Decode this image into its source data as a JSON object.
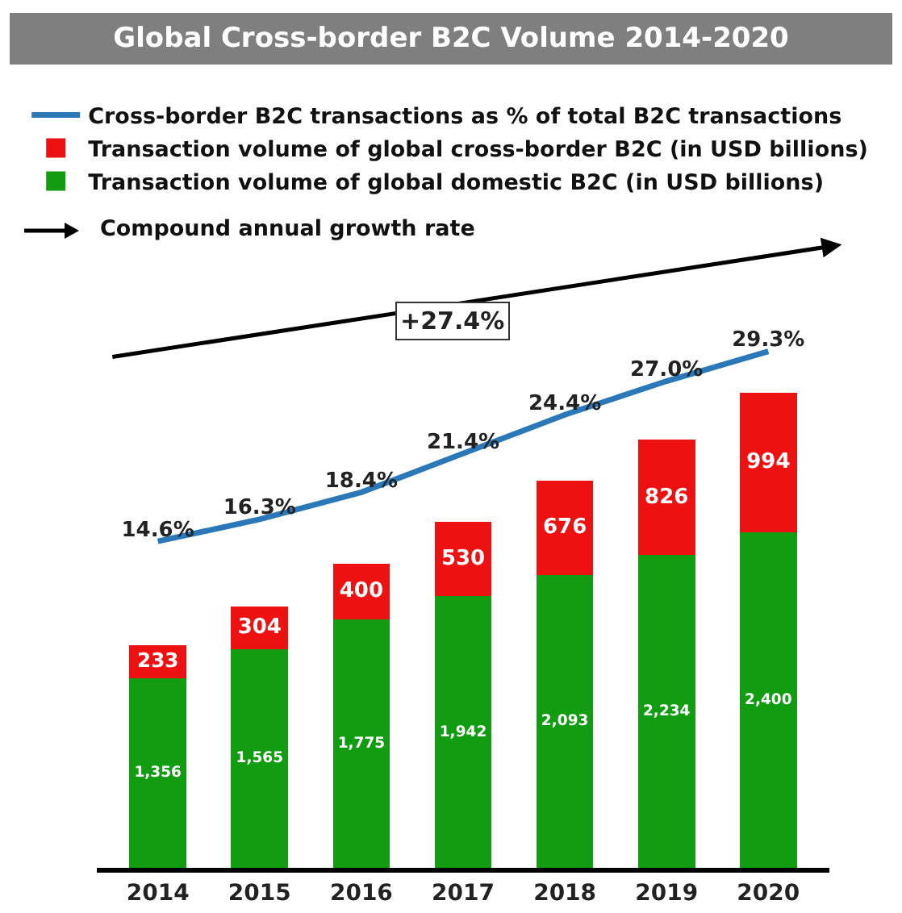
{
  "chart_data": {
    "type": "bar",
    "title": "Global Cross-border B2C Volume 2014-2020",
    "categories": [
      "2014",
      "2015",
      "2016",
      "2017",
      "2018",
      "2019",
      "2020"
    ],
    "stacked": true,
    "series": [
      {
        "name": "Transaction volume of global domestic B2C (in USD billions)",
        "color": "#129c12",
        "values": [
          1356,
          1565,
          1775,
          1942,
          2093,
          2234,
          2400
        ],
        "value_labels": [
          "1,356",
          "1,565",
          "1,775",
          "1,942",
          "2,093",
          "2,234",
          "2,400"
        ]
      },
      {
        "name": "Transaction volume of global cross-border B2C (in USD billions)",
        "color": "#ee1111",
        "values": [
          233,
          304,
          400,
          530,
          676,
          826,
          994
        ]
      },
      {
        "name": "Cross-border B2C transactions as % of total B2C transactions",
        "type": "line",
        "axis": "y2",
        "color": "#2a78b8",
        "values": [
          14.6,
          16.3,
          18.4,
          21.4,
          24.4,
          27.0,
          29.3
        ],
        "value_labels": [
          "14.6%",
          "16.3%",
          "18.4%",
          "21.4%",
          "24.4%",
          "27.0%",
          "29.3%"
        ]
      }
    ],
    "data_labels": true,
    "legend": "top left",
    "marker": "none",
    "line_style": "solid",
    "grid": false,
    "tick_labels": "x",
    "annotations": [
      "+27.4%",
      "Compound annual growth rate"
    ]
  }
}
